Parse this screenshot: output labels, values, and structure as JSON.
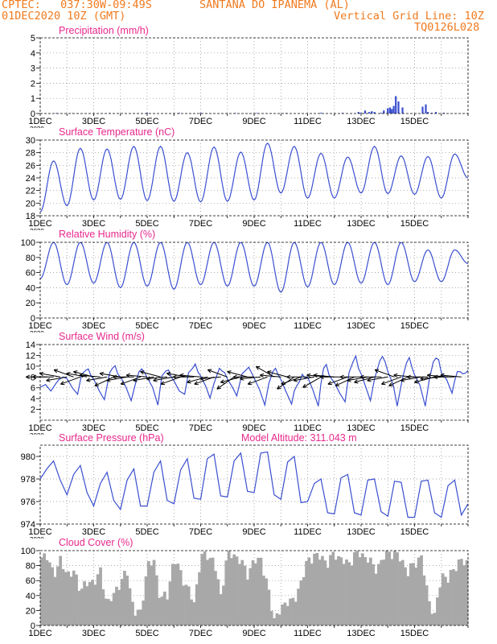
{
  "header": {
    "line1_left": "CPTEC:   037:30W-09:49S",
    "line1_station": "SANTANA DO IPANEMA (AL)",
    "line2_left": "01DEC2020 10Z (GMT)",
    "line2_right": "Vertical Grid Line: 10Z",
    "line3_right": "TQ0126L028"
  },
  "colors": {
    "header": "#f07a1e",
    "title": "#e8288c",
    "line": "#3a4fd0",
    "wind": "#000000",
    "cloud": "#a8a8a8"
  },
  "x_axis": {
    "days": 16,
    "tick_labels": [
      "1DEC",
      "3DEC",
      "5DEC",
      "7DEC",
      "9DEC",
      "11DEC",
      "13DEC",
      "15DEC"
    ],
    "tick_days": [
      0,
      2,
      4,
      6,
      8,
      10,
      12,
      14
    ],
    "partial_label": "2020"
  },
  "chart_data": [
    {
      "type": "bar",
      "title": "Precipitation (mm/h)",
      "ylim": [
        0,
        5
      ],
      "yticks": [
        0,
        1,
        2,
        3,
        4,
        5
      ],
      "x_day": [
        0.6,
        1.2,
        2.6,
        4.0,
        5.2,
        6.0,
        7.3,
        8.1,
        9.2,
        10.5,
        11.3,
        11.9,
        12.0,
        12.15,
        12.3,
        12.4,
        12.5,
        12.75,
        12.85,
        13.0,
        13.08,
        13.15,
        13.22,
        13.3,
        13.4,
        13.55,
        14.3,
        14.42,
        14.5,
        14.65,
        14.8,
        15.1
      ],
      "values": [
        0.03,
        0.02,
        0.03,
        0.05,
        0.04,
        0.04,
        0.03,
        0.03,
        0.03,
        0.05,
        0.04,
        0.1,
        0.05,
        0.2,
        0.1,
        0.15,
        0.1,
        0.05,
        0.2,
        0.35,
        0.4,
        0.3,
        0.5,
        1.15,
        0.8,
        0.4,
        0.45,
        0.6,
        0.1,
        0.05,
        0.1,
        0.05
      ]
    },
    {
      "type": "line",
      "title": "Surface Temperature (nC)",
      "ylim": [
        18,
        30
      ],
      "yticks": [
        18,
        20,
        22,
        24,
        26,
        28,
        30
      ],
      "minima": [
        18.6,
        19.6,
        20.5,
        20.6,
        20.4,
        20.3,
        20.2,
        20.3,
        20.5,
        21.6,
        20.8,
        20.8,
        21.6,
        21.5,
        21.4,
        20.8
      ],
      "maxima": [
        26.7,
        28.7,
        28.6,
        29.0,
        29.0,
        28.0,
        28.9,
        28.1,
        29.5,
        29.0,
        27.9,
        27.3,
        29.0,
        27.5,
        27.4,
        27.8
      ],
      "end_value": 24.0
    },
    {
      "type": "line",
      "title": "Relative Humidity (%)",
      "ylim": [
        0,
        100
      ],
      "yticks": [
        0,
        20,
        40,
        60,
        80,
        100
      ],
      "minima": [
        52,
        44,
        46,
        40,
        42,
        38,
        44,
        42,
        42,
        34,
        41,
        44,
        46,
        44,
        48,
        48
      ],
      "maxima": [
        100,
        100,
        100,
        100,
        100,
        100,
        100,
        100,
        100,
        100,
        100,
        100,
        100,
        100,
        90,
        90
      ],
      "end_value": 72
    },
    {
      "type": "line",
      "title": "Surface Wind (m/s)",
      "ylim": [
        0,
        14
      ],
      "yticks": [
        2,
        4,
        6,
        8,
        10,
        12,
        14
      ],
      "series": [
        {
          "name": "speed",
          "x_day": [
            0,
            0.2,
            0.4,
            0.6,
            0.7,
            0.85,
            1.0,
            1.2,
            1.4,
            1.55,
            1.7,
            1.8,
            1.9,
            2.0,
            2.2,
            2.4,
            2.6,
            2.7,
            2.8,
            2.9,
            3.05,
            3.2,
            3.4,
            3.6,
            3.7,
            3.8,
            3.9,
            4.0,
            4.2,
            4.4,
            4.55,
            4.7,
            4.8,
            4.9,
            5.0,
            5.2,
            5.4,
            5.55,
            5.7,
            5.8,
            5.9,
            6.0,
            6.2,
            6.35,
            6.5,
            6.7,
            6.8,
            6.9,
            7.0,
            7.2,
            7.35,
            7.55,
            7.7,
            7.8,
            7.9,
            8.0,
            8.2,
            8.4,
            8.55,
            8.7,
            8.8,
            8.9,
            9.0,
            9.2,
            9.4,
            9.5,
            9.6,
            9.7,
            9.8,
            9.9,
            10.0,
            10.2,
            10.4,
            10.5,
            10.6,
            10.7,
            10.8,
            10.9,
            11.0,
            11.2,
            11.4,
            11.55,
            11.7,
            11.8,
            11.9,
            12.0,
            12.2,
            12.35,
            12.5,
            12.7,
            12.8,
            12.9,
            13.0,
            13.2,
            13.35,
            13.55,
            13.7,
            13.8,
            13.9,
            14.0,
            14.2,
            14.4,
            14.55,
            14.7,
            14.8,
            14.9,
            15.0,
            15.2,
            15.4,
            15.5,
            15.6,
            15.7,
            15.8,
            15.9,
            16.0
          ],
          "values": [
            6.1,
            6.6,
            5.4,
            6.9,
            7.5,
            8.0,
            7.7,
            6.0,
            4.8,
            8.5,
            9.2,
            9.5,
            8.2,
            7.6,
            5.5,
            3.8,
            8.8,
            9.6,
            10.1,
            8.6,
            7.6,
            6.2,
            3.6,
            7.5,
            9.0,
            9.5,
            8.8,
            7.9,
            6.1,
            2.8,
            8.2,
            9.1,
            9.3,
            8.0,
            7.3,
            5.4,
            4.8,
            8.8,
            9.6,
            10.4,
            8.9,
            8.2,
            6.2,
            4.1,
            6.8,
            9.6,
            9.1,
            8.8,
            7.6,
            6.0,
            4.5,
            8.6,
            9.3,
            9.8,
            8.8,
            7.8,
            5.7,
            2.8,
            6.8,
            9.0,
            9.6,
            8.4,
            7.5,
            5.2,
            3.0,
            5.4,
            6.4,
            7.2,
            8.5,
            7.8,
            8.0,
            5.6,
            2.6,
            6.8,
            9.6,
            10.3,
            8.4,
            7.6,
            7.0,
            5.0,
            3.4,
            8.8,
            10.8,
            11.9,
            9.6,
            8.6,
            5.8,
            3.6,
            7.6,
            11.0,
            11.8,
            10.8,
            9.0,
            6.6,
            2.6,
            7.8,
            10.6,
            11.6,
            9.8,
            8.4,
            6.5,
            2.6,
            7.5,
            10.8,
            11.5,
            11.2,
            8.8,
            7.5,
            5.0,
            7.3,
            9.0,
            9.0,
            8.6,
            8.7,
            9.2
          ]
        }
      ],
      "vectors": {
        "x_day": [
          0.25,
          0.5,
          0.75,
          1.0,
          1.25,
          1.5,
          1.75,
          2.0,
          2.25,
          2.5,
          2.75,
          3.0,
          3.25,
          3.5,
          3.75,
          4.0,
          4.25,
          4.5,
          4.75,
          5.0,
          5.25,
          5.5,
          5.75,
          6.0,
          6.25,
          6.5,
          6.75,
          7.0,
          7.25,
          7.5,
          7.75,
          8.0,
          8.25,
          8.5,
          8.75,
          9.0,
          9.25,
          9.5,
          9.75,
          10.0,
          10.25,
          10.5,
          10.75,
          11.0,
          11.25,
          11.5,
          11.75,
          12.0,
          12.25,
          12.5,
          12.75,
          13.0,
          13.25,
          13.5,
          13.75,
          14.0,
          14.25,
          14.5,
          14.75,
          15.0,
          15.25,
          15.5,
          15.75
        ],
        "dir_deg": [
          180,
          180,
          170,
          190,
          160,
          200,
          170,
          165,
          175,
          190,
          205,
          170,
          190,
          180,
          200,
          175,
          190,
          165,
          185,
          190,
          200,
          170,
          180,
          175,
          195,
          200,
          185,
          160,
          215,
          195,
          165,
          180,
          185,
          200,
          150,
          175,
          165,
          215,
          200,
          180,
          190,
          210,
          175,
          175,
          180,
          200,
          205,
          180,
          190,
          195,
          180,
          190,
          160,
          200,
          205,
          175,
          190,
          180,
          195,
          185,
          175,
          180,
          175
        ]
      }
    },
    {
      "type": "line",
      "title": "Surface Pressure (hPa)",
      "ylim": [
        974,
        981
      ],
      "yticks": [
        974,
        976,
        978,
        980
      ],
      "series": [
        {
          "name": "pressure",
          "x_day": [
            0,
            0.25,
            0.5,
            0.75,
            1.0,
            1.25,
            1.5,
            1.75,
            2.0,
            2.25,
            2.5,
            2.75,
            3.0,
            3.25,
            3.5,
            3.75,
            4.0,
            4.25,
            4.5,
            4.75,
            5.0,
            5.25,
            5.5,
            5.75,
            6.0,
            6.25,
            6.5,
            6.75,
            7.0,
            7.25,
            7.5,
            7.75,
            8.0,
            8.25,
            8.5,
            8.75,
            9.0,
            9.25,
            9.5,
            9.75,
            10.0,
            10.25,
            10.5,
            10.75,
            11.0,
            11.25,
            11.5,
            11.75,
            12.0,
            12.25,
            12.5,
            12.75,
            13.0,
            13.25,
            13.5,
            13.75,
            14.0,
            14.25,
            14.5,
            14.75,
            15.0,
            15.25,
            15.5,
            15.75,
            16.0
          ],
          "values": [
            978.0,
            978.9,
            979.6,
            977.9,
            976.6,
            978.4,
            979.2,
            976.8,
            975.6,
            977.6,
            978.6,
            976.1,
            975.3,
            977.9,
            978.9,
            975.6,
            975.6,
            978.6,
            979.6,
            976.1,
            975.8,
            978.8,
            979.8,
            976.3,
            976.2,
            979.8,
            980.2,
            976.5,
            976.4,
            979.6,
            980.3,
            976.9,
            976.8,
            980.3,
            980.4,
            976.6,
            976.2,
            979.5,
            980.0,
            975.9,
            976.0,
            977.6,
            978.0,
            975.0,
            974.9,
            978.1,
            978.4,
            975.0,
            974.8,
            977.9,
            978.0,
            975.1,
            974.7,
            977.8,
            977.7,
            974.6,
            974.6,
            977.8,
            977.9,
            975.0,
            974.6,
            977.4,
            977.9,
            974.8,
            975.8
          ]
        }
      ]
    },
    {
      "type": "bar",
      "title": "Cloud Cover (%)",
      "ylim": [
        0,
        100
      ],
      "yticks": [
        0,
        20,
        40,
        60,
        80,
        100
      ],
      "x_day": [
        0.0,
        0.25,
        0.5,
        0.75,
        1.0,
        1.25,
        1.5,
        1.75,
        2.0,
        2.25,
        2.5,
        2.75,
        3.0,
        3.25,
        3.5,
        3.75,
        4.0,
        4.25,
        4.5,
        4.75,
        5.0,
        5.25,
        5.5,
        5.75,
        6.0,
        6.25,
        6.5,
        6.75,
        7.0,
        7.25,
        7.5,
        7.75,
        8.0,
        8.25,
        8.5,
        8.75,
        9.0,
        9.25,
        9.5,
        9.75,
        10.0,
        10.25,
        10.5,
        10.75,
        11.0,
        11.25,
        11.5,
        11.75,
        12.0,
        12.25,
        12.5,
        12.75,
        13.0,
        13.25,
        13.5,
        13.75,
        14.0,
        14.25,
        14.5,
        14.75,
        15.0,
        15.25,
        15.5,
        15.75
      ],
      "values": [
        95,
        90,
        70,
        85,
        70,
        70,
        50,
        55,
        60,
        70,
        30,
        40,
        60,
        70,
        20,
        15,
        80,
        85,
        35,
        40,
        90,
        70,
        50,
        30,
        90,
        95,
        85,
        40,
        95,
        95,
        85,
        70,
        85,
        90,
        50,
        10,
        20,
        35,
        30,
        60,
        85,
        95,
        90,
        85,
        95,
        90,
        80,
        95,
        95,
        90,
        75,
        85,
        100,
        95,
        90,
        70,
        85,
        90,
        40,
        10,
        70,
        60,
        80,
        85
      ]
    }
  ],
  "annotation": "Model Altitude: 311.043 m"
}
